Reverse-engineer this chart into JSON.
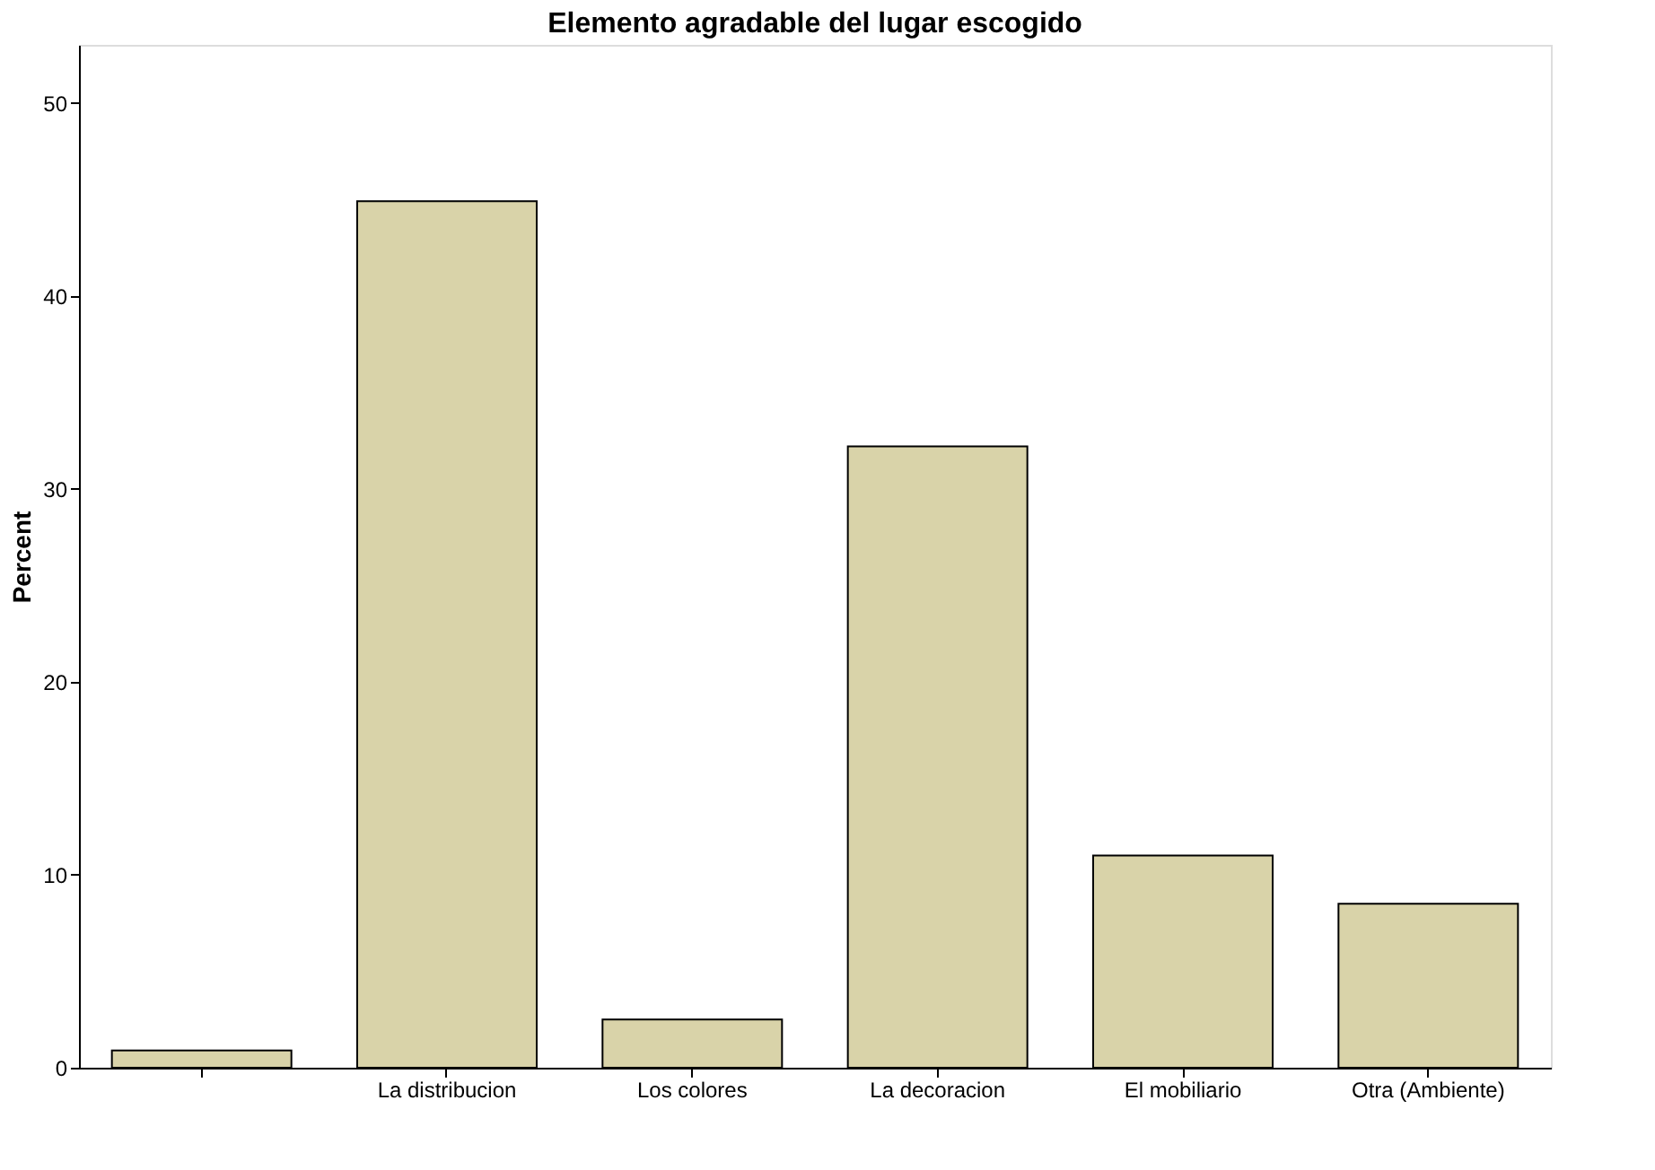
{
  "chart_data": {
    "type": "bar",
    "title": "Elemento agradable del lugar escogido",
    "ylabel": "Percent",
    "categories": [
      null,
      "La distribucion",
      "Los colores",
      "La decoracion",
      "El mobiliario",
      "Otra (Ambiente)"
    ],
    "values": [
      0.9,
      44.9,
      2.5,
      32.2,
      11.0,
      8.5
    ],
    "color": "#d9d3a9",
    "ylim": [
      0,
      53
    ],
    "yticks": [
      0,
      10,
      20,
      30,
      40,
      50
    ],
    "grid": false
  }
}
